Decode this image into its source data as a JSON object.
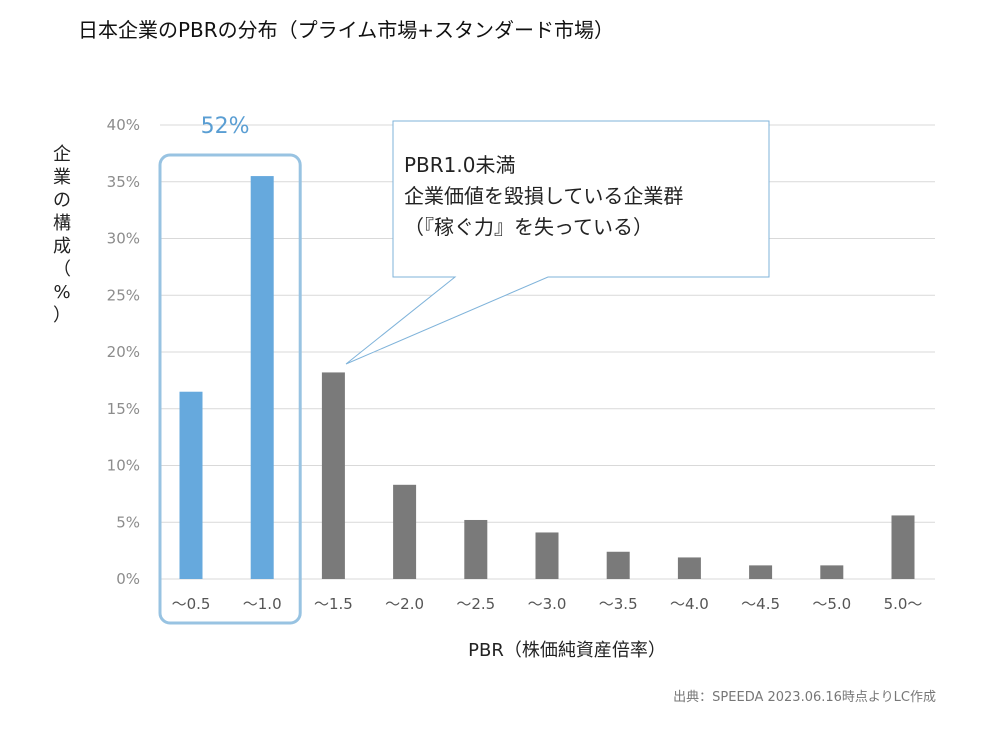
{
  "chart_data": {
    "type": "bar",
    "title": "日本企業のPBRの分布（プライム市場+スタンダード市場）",
    "xlabel": "PBR（株価純資産倍率）",
    "ylabel": "企業の構成（%）",
    "ylim": [
      0,
      40
    ],
    "yticks": [
      "0%",
      "5%",
      "10%",
      "15%",
      "20%",
      "25%",
      "30%",
      "35%",
      "40%"
    ],
    "grid": true,
    "categories": [
      "～0.5",
      "～1.0",
      "～1.5",
      "～2.0",
      "～2.5",
      "～3.0",
      "～3.5",
      "～4.0",
      "～4.5",
      "～5.0",
      "5.0～"
    ],
    "values": [
      16.5,
      35.5,
      18.2,
      8.3,
      5.2,
      4.1,
      2.4,
      1.9,
      1.2,
      1.2,
      5.6
    ],
    "highlight": {
      "categories": [
        "～0.5",
        "～1.0"
      ],
      "label": "52%"
    },
    "callout": {
      "lines": [
        "PBR1.0未満",
        "企業価値を毀損している企業群",
        "（『稼ぐ力』を失っている）"
      ]
    },
    "source": "出典：SPEEDA 2023.06.16時点よりLC作成",
    "colors": {
      "highlight_bar": "#66A9DD",
      "normal_bar": "#7A7A7A",
      "highlight_box": "#98C3E2",
      "highlight_text": "#5A9ED3",
      "callout_border": "#7FB3DA",
      "grid": "#D9D9D9",
      "axis_text": "#8C8C8C"
    }
  }
}
